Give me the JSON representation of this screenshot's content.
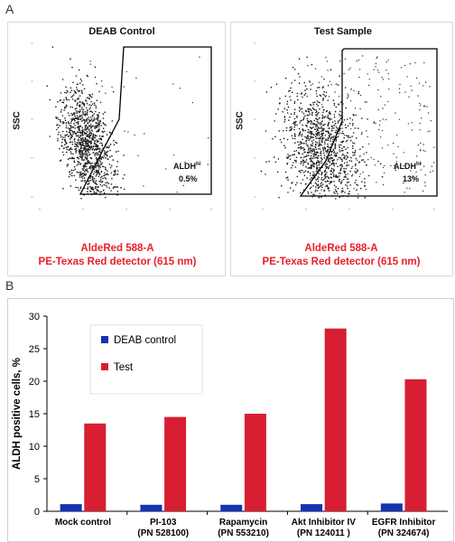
{
  "panel_a": {
    "letter": "A",
    "left": {
      "title": "DEAB Control",
      "ylabel": "SSC",
      "gate_label_main": "ALDH",
      "gate_label_sup": "hi",
      "gate_value": "0.5%",
      "xlabel_line1": "AldeRed 588-A",
      "xlabel_line2": "PE-Texas Red detector (615 nm)"
    },
    "right": {
      "title": "Test Sample",
      "ylabel": "SSC",
      "gate_label_main": "ALDH",
      "gate_label_sup": "hi",
      "gate_value": "13%",
      "xlabel_line1": "AldeRed 588-A",
      "xlabel_line2": "PE-Texas Red detector (615 nm)"
    }
  },
  "panel_b": {
    "letter": "B"
  },
  "chart_data": {
    "type": "bar",
    "categories": [
      [
        "Mock control",
        ""
      ],
      [
        "PI-103",
        "(PN 528100)"
      ],
      [
        "Rapamycin",
        "(PN 553210)"
      ],
      [
        "Akt Inhibitor IV",
        "(PN 124011 )"
      ],
      [
        "EGFR Inhibitor",
        "(PN 324674)"
      ]
    ],
    "series": [
      {
        "name": "DEAB control",
        "values": [
          1.1,
          1.0,
          1.0,
          1.1,
          1.2
        ],
        "color": "#1432b4"
      },
      {
        "name": "Test",
        "values": [
          13.5,
          14.5,
          15.0,
          28.1,
          20.3
        ],
        "color": "#d81e32"
      }
    ],
    "ylabel": "ALDH positive cells, %",
    "ylim": [
      0,
      30
    ],
    "yticks": [
      0,
      5,
      10,
      15,
      20,
      25,
      30
    ],
    "grid": false,
    "legend_position": "top-left"
  }
}
